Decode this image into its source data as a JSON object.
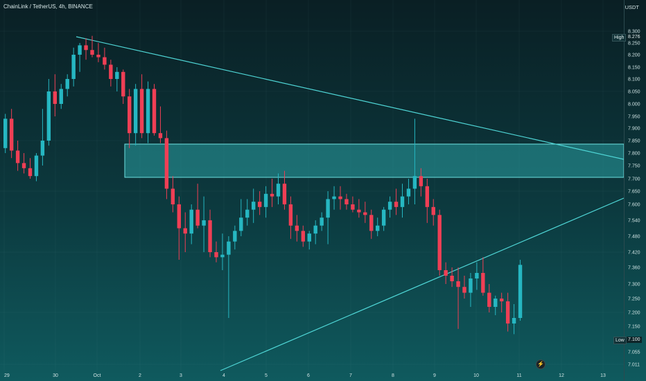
{
  "header": {
    "title": "ChainLink / TetherUS, 4h, BINANCE",
    "unit": "USDT"
  },
  "markers": {
    "high_label": "High",
    "high_value": "8.276",
    "low_label": "Low",
    "low_value": "7.100"
  },
  "colors": {
    "up": "#26b7c2",
    "down": "#ef3f55",
    "trendline": "#4fd6d6",
    "zone_fill": "#2a9ea3",
    "zone_stroke": "#6fe3e3"
  },
  "icons": {
    "event": "lightning-icon"
  },
  "chart_data": {
    "type": "candlestick",
    "y_axis_ticks": [
      "8.300",
      "8.250",
      "8.200",
      "8.150",
      "8.100",
      "8.050",
      "8.000",
      "7.950",
      "7.900",
      "7.850",
      "7.800",
      "7.750",
      "7.700",
      "7.650",
      "7.600",
      "7.540",
      "7.480",
      "7.420",
      "7.360",
      "7.300",
      "7.250",
      "7.200",
      "7.150",
      "7.100",
      "7.055",
      "7.011"
    ],
    "x_axis_ticks": [
      "29",
      "30",
      "Oct",
      "2",
      "3",
      "4",
      "5",
      "6",
      "7",
      "8",
      "9",
      "10",
      "11",
      "12",
      "13"
    ],
    "candles": [
      [
        7.82,
        7.96,
        7.8,
        7.94
      ],
      [
        7.94,
        7.98,
        7.78,
        7.81
      ],
      [
        7.81,
        7.85,
        7.73,
        7.76
      ],
      [
        7.76,
        7.8,
        7.72,
        7.74
      ],
      [
        7.74,
        7.78,
        7.7,
        7.71
      ],
      [
        7.71,
        7.8,
        7.69,
        7.79
      ],
      [
        7.79,
        7.98,
        7.75,
        7.85
      ],
      [
        7.85,
        8.1,
        7.83,
        8.05
      ],
      [
        8.05,
        8.12,
        7.95,
        8.0
      ],
      [
        8.0,
        8.08,
        7.98,
        8.06
      ],
      [
        8.06,
        8.12,
        8.03,
        8.1
      ],
      [
        8.1,
        8.23,
        8.07,
        8.2
      ],
      [
        8.2,
        8.25,
        8.13,
        8.24
      ],
      [
        8.24,
        8.27,
        8.18,
        8.22
      ],
      [
        8.22,
        8.28,
        8.19,
        8.2
      ],
      [
        8.2,
        8.25,
        8.17,
        8.19
      ],
      [
        8.19,
        8.23,
        8.14,
        8.16
      ],
      [
        8.16,
        8.18,
        8.07,
        8.1
      ],
      [
        8.1,
        8.15,
        8.05,
        8.13
      ],
      [
        8.13,
        8.14,
        8.0,
        8.03
      ],
      [
        8.03,
        8.06,
        7.82,
        7.88
      ],
      [
        7.88,
        8.08,
        7.83,
        8.06
      ],
      [
        8.06,
        8.12,
        7.86,
        7.88
      ],
      [
        7.88,
        8.09,
        7.84,
        8.06
      ],
      [
        8.06,
        8.08,
        7.87,
        7.88
      ],
      [
        7.88,
        7.99,
        7.84,
        7.86
      ],
      [
        7.86,
        7.89,
        7.62,
        7.66
      ],
      [
        7.66,
        7.71,
        7.57,
        7.6
      ],
      [
        7.6,
        7.63,
        7.39,
        7.51
      ],
      [
        7.51,
        7.57,
        7.42,
        7.49
      ],
      [
        7.49,
        7.6,
        7.45,
        7.58
      ],
      [
        7.58,
        7.68,
        7.51,
        7.52
      ],
      [
        7.52,
        7.63,
        7.42,
        7.54
      ],
      [
        7.54,
        7.58,
        7.4,
        7.42
      ],
      [
        7.42,
        7.46,
        7.38,
        7.4
      ],
      [
        7.4,
        7.49,
        7.35,
        7.41
      ],
      [
        7.41,
        7.48,
        7.18,
        7.46
      ],
      [
        7.46,
        7.52,
        7.43,
        7.5
      ],
      [
        7.5,
        7.62,
        7.48,
        7.55
      ],
      [
        7.55,
        7.62,
        7.52,
        7.58
      ],
      [
        7.58,
        7.66,
        7.53,
        7.61
      ],
      [
        7.61,
        7.65,
        7.56,
        7.59
      ],
      [
        7.59,
        7.67,
        7.55,
        7.64
      ],
      [
        7.64,
        7.7,
        7.59,
        7.63
      ],
      [
        7.63,
        7.72,
        7.6,
        7.68
      ],
      [
        7.68,
        7.73,
        7.58,
        7.6
      ],
      [
        7.6,
        7.63,
        7.47,
        7.52
      ],
      [
        7.52,
        7.56,
        7.46,
        7.5
      ],
      [
        7.5,
        7.52,
        7.44,
        7.46
      ],
      [
        7.46,
        7.5,
        7.43,
        7.49
      ],
      [
        7.49,
        7.54,
        7.45,
        7.52
      ],
      [
        7.52,
        7.57,
        7.5,
        7.55
      ],
      [
        7.55,
        7.65,
        7.45,
        7.62
      ],
      [
        7.62,
        7.67,
        7.58,
        7.63
      ],
      [
        7.63,
        7.67,
        7.58,
        7.62
      ],
      [
        7.62,
        7.64,
        7.58,
        7.6
      ],
      [
        7.6,
        7.63,
        7.57,
        7.58
      ],
      [
        7.58,
        7.62,
        7.55,
        7.57
      ],
      [
        7.57,
        7.61,
        7.53,
        7.56
      ],
      [
        7.56,
        7.58,
        7.47,
        7.5
      ],
      [
        7.5,
        7.55,
        7.48,
        7.52
      ],
      [
        7.52,
        7.59,
        7.5,
        7.58
      ],
      [
        7.58,
        7.63,
        7.55,
        7.61
      ],
      [
        7.61,
        7.66,
        7.56,
        7.59
      ],
      [
        7.59,
        7.68,
        7.55,
        7.63
      ],
      [
        7.63,
        7.7,
        7.6,
        7.66
      ],
      [
        7.66,
        7.94,
        7.6,
        7.71
      ],
      [
        7.71,
        7.74,
        7.63,
        7.67
      ],
      [
        7.67,
        7.7,
        7.53,
        7.59
      ],
      [
        7.59,
        7.62,
        7.52,
        7.56
      ],
      [
        7.56,
        7.58,
        7.33,
        7.35
      ],
      [
        7.35,
        7.38,
        7.3,
        7.33
      ],
      [
        7.33,
        7.36,
        7.29,
        7.31
      ],
      [
        7.31,
        7.36,
        7.14,
        7.29
      ],
      [
        7.29,
        7.33,
        7.25,
        7.27
      ],
      [
        7.27,
        7.34,
        7.22,
        7.32
      ],
      [
        7.32,
        7.38,
        7.28,
        7.34
      ],
      [
        7.34,
        7.4,
        7.26,
        7.27
      ],
      [
        7.27,
        7.3,
        7.2,
        7.22
      ],
      [
        7.22,
        7.26,
        7.19,
        7.25
      ],
      [
        7.25,
        7.27,
        7.2,
        7.24
      ],
      [
        7.24,
        7.27,
        7.13,
        7.16
      ],
      [
        7.16,
        7.23,
        7.12,
        7.18
      ],
      [
        7.18,
        7.39,
        7.17,
        7.37
      ]
    ]
  }
}
